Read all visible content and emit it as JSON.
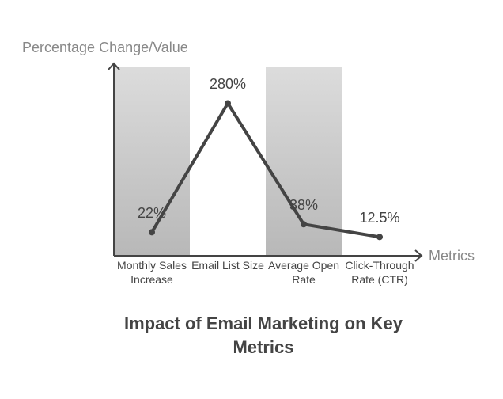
{
  "chart_data": {
    "type": "line",
    "title": "Impact of Email Marketing on Key Metrics",
    "x_label": "Metrics",
    "y_label": "Percentage Change/Value",
    "categories": [
      "Monthly Sales Increase",
      "Email List Size",
      "Average Open Rate",
      "Click-Through Rate (CTR)"
    ],
    "values": [
      22,
      280,
      38,
      12.5
    ],
    "value_labels": [
      "22%",
      "280%",
      "38%",
      "12.5%"
    ],
    "color": "#444444",
    "ylim": [
      -25,
      360
    ]
  }
}
